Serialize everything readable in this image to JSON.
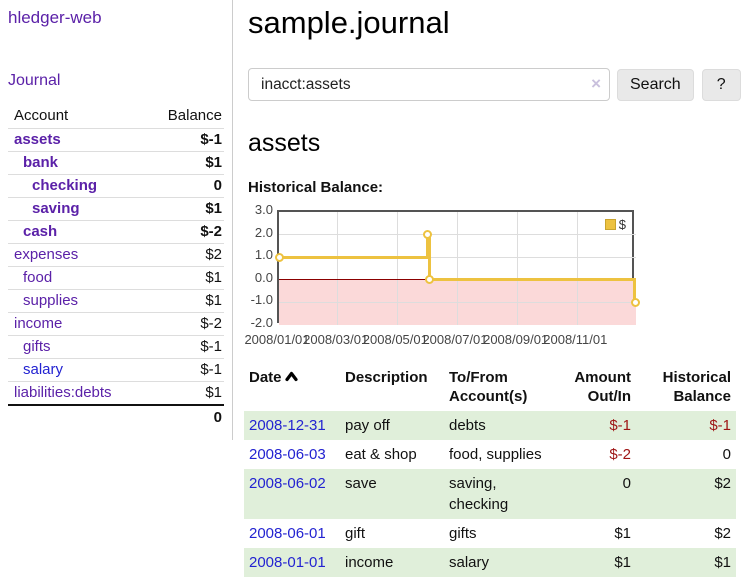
{
  "sidebar": {
    "app_title": "hledger-web",
    "journal_link": "Journal",
    "table": {
      "account_header": "Account",
      "balance_header": "Balance",
      "rows": [
        {
          "name": "assets",
          "balance": "$-1",
          "level": 0,
          "current": true,
          "neg": "strong"
        },
        {
          "name": "bank",
          "balance": "$1",
          "level": 1,
          "current": true,
          "neg": "none"
        },
        {
          "name": "checking",
          "balance": "0",
          "level": 2,
          "current": true,
          "neg": "none"
        },
        {
          "name": "saving",
          "balance": "$1",
          "level": 2,
          "current": true,
          "neg": "none"
        },
        {
          "name": "cash",
          "balance": "$-2",
          "level": 1,
          "current": true,
          "neg": "strong"
        },
        {
          "name": "expenses",
          "balance": "$2",
          "level": 0,
          "current": false,
          "neg": "none"
        },
        {
          "name": "food",
          "balance": "$1",
          "level": 1,
          "current": false,
          "neg": "none"
        },
        {
          "name": "supplies",
          "balance": "$1",
          "level": 1,
          "current": false,
          "neg": "none"
        },
        {
          "name": "income",
          "balance": "$-2",
          "level": 0,
          "current": false,
          "neg": "soft"
        },
        {
          "name": "gifts",
          "balance": "$-1",
          "level": 1,
          "current": false,
          "neg": "soft"
        },
        {
          "name": "salary",
          "balance": "$-1",
          "level": 1,
          "current": false,
          "neg": "soft",
          "blue": true
        },
        {
          "name": "liabilities:debts",
          "balance": "$1",
          "level": 0,
          "current": false,
          "neg": "none"
        }
      ],
      "total": "0"
    }
  },
  "header": {
    "title": "sample.journal"
  },
  "search": {
    "query": "inacct:assets",
    "clear_icon": "×",
    "button_label": "Search",
    "help_label": "?"
  },
  "register": {
    "heading": "assets",
    "chart_label": "Historical Balance:",
    "table": {
      "headers": {
        "date": "Date",
        "description": "Description",
        "tofrom": "To/From Account(s)",
        "amount": "Amount Out/In",
        "historical": "Historical Balance"
      },
      "rows": [
        {
          "date": "2008-12-31",
          "description": "pay off",
          "accounts": "debts",
          "amount": "$-1",
          "balance": "$-1"
        },
        {
          "date": "2008-06-03",
          "description": "eat & shop",
          "accounts": "food, supplies",
          "amount": "$-2",
          "balance": "0"
        },
        {
          "date": "2008-06-02",
          "description": "save",
          "accounts": "saving, checking",
          "amount": "0",
          "balance": "$2"
        },
        {
          "date": "2008-06-01",
          "description": "gift",
          "accounts": "gifts",
          "amount": "$1",
          "balance": "$2"
        },
        {
          "date": "2008-01-01",
          "description": "income",
          "accounts": "salary",
          "amount": "$1",
          "balance": "$1"
        }
      ]
    }
  },
  "chart_data": {
    "type": "line",
    "title": "Historical Balance of assets",
    "legend": {
      "label": "$",
      "position": "top-right"
    },
    "step": true,
    "points": [
      {
        "x": "2008-01-01",
        "day": 0,
        "y": 1
      },
      {
        "x": "2008-06-01",
        "day": 152,
        "y": 2
      },
      {
        "x": "2008-06-03",
        "day": 154,
        "y": 0
      },
      {
        "x": "2008-12-31",
        "day": 365,
        "y": -1
      }
    ],
    "ylim": [
      -2,
      3
    ],
    "x_domain_days": 365,
    "y_ticks": [
      "3.0",
      "2.0",
      "1.0",
      "0.0",
      "-1.0",
      "-2.0"
    ],
    "y_tick_values": [
      3,
      2,
      1,
      0,
      -1,
      -2
    ],
    "x_ticks": [
      "2008/01/01",
      "2008/03/01",
      "2008/05/01",
      "2008/07/01",
      "2008/09/01",
      "2008/11/01"
    ],
    "x_tick_days": [
      0,
      60,
      121,
      182,
      244,
      305
    ],
    "grid": true,
    "colors": {
      "line": "#edc240",
      "marker_fill": "#ffffff",
      "below_zero_fill": "#fbd9d9",
      "zero_line": "#8b0000",
      "grid": "#dddddd",
      "border": "#545454"
    }
  }
}
